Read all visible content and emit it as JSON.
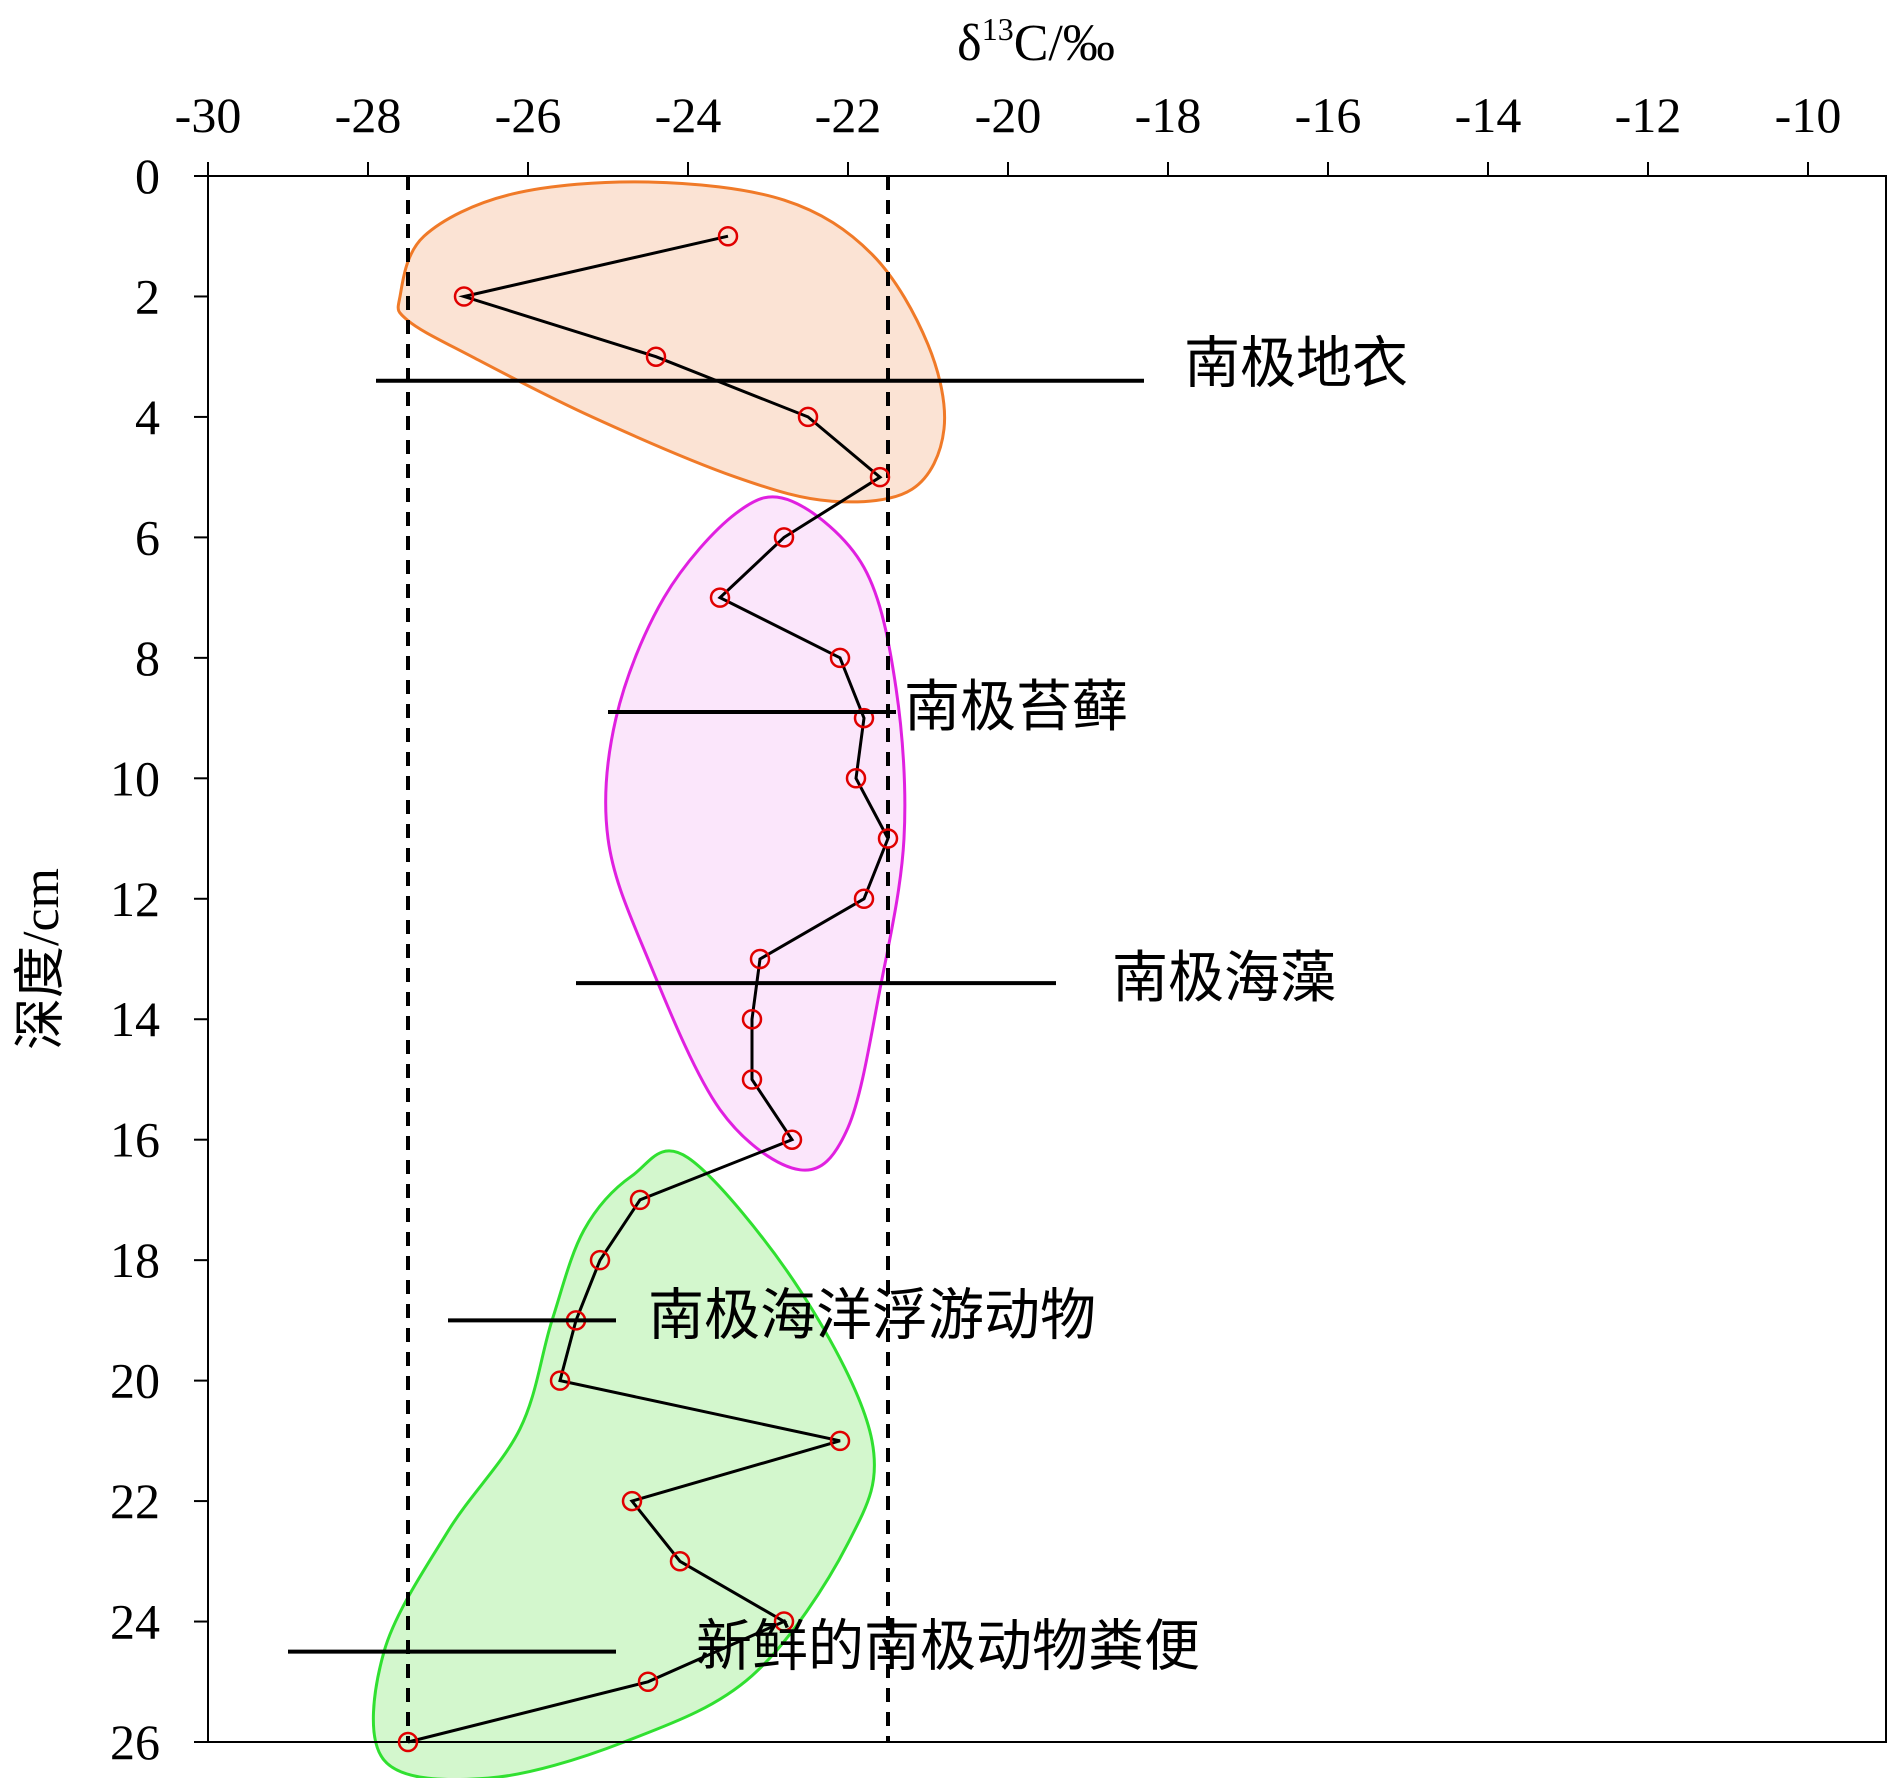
{
  "chart_data": {
    "type": "scatter",
    "title": "",
    "xlabel": "δ13C/‰",
    "xlabel_parts": {
      "base": "δ",
      "sup": "13",
      "rest": "C/‰"
    },
    "ylabel": "深度/cm",
    "x_axis_position": "top",
    "y_axis_inverted": true,
    "xlim": [
      -30,
      -9
    ],
    "ylim": [
      0,
      26
    ],
    "xticks": [
      -30,
      -28,
      -26,
      -24,
      -22,
      -20,
      -18,
      -16,
      -14,
      -12,
      -10
    ],
    "xtick_labels": [
      "-30",
      "-28",
      "-26",
      "-24",
      "-22",
      "-20",
      "-18",
      "-16",
      "-14",
      "-12",
      "-10"
    ],
    "yticks": [
      0,
      2,
      4,
      6,
      8,
      10,
      12,
      14,
      16,
      18,
      20,
      22,
      24,
      26
    ],
    "ytick_labels": [
      "0",
      "2",
      "4",
      "6",
      "8",
      "10",
      "12",
      "14",
      "16",
      "18",
      "20",
      "22",
      "24",
      "26"
    ],
    "grid": false,
    "legend": "none",
    "series": [
      {
        "marker": "open-circle",
        "marker_color": "#e00000",
        "line_color": "#000000",
        "points": [
          {
            "x": -23.5,
            "y": 1
          },
          {
            "x": -26.8,
            "y": 2
          },
          {
            "x": -24.4,
            "y": 3
          },
          {
            "x": -22.5,
            "y": 4
          },
          {
            "x": -21.6,
            "y": 5
          },
          {
            "x": -22.8,
            "y": 6
          },
          {
            "x": -23.6,
            "y": 7
          },
          {
            "x": -22.1,
            "y": 8
          },
          {
            "x": -21.8,
            "y": 9
          },
          {
            "x": -21.9,
            "y": 10
          },
          {
            "x": -21.5,
            "y": 11
          },
          {
            "x": -21.8,
            "y": 12
          },
          {
            "x": -23.1,
            "y": 13
          },
          {
            "x": -23.2,
            "y": 14
          },
          {
            "x": -23.2,
            "y": 15
          },
          {
            "x": -22.7,
            "y": 16
          },
          {
            "x": -24.6,
            "y": 17
          },
          {
            "x": -25.1,
            "y": 18
          },
          {
            "x": -25.4,
            "y": 19
          },
          {
            "x": -25.6,
            "y": 20
          },
          {
            "x": -22.1,
            "y": 21
          },
          {
            "x": -24.7,
            "y": 22
          },
          {
            "x": -24.1,
            "y": 23
          },
          {
            "x": -22.8,
            "y": 24
          },
          {
            "x": -24.5,
            "y": 25
          },
          {
            "x": -27.5,
            "y": 26
          }
        ]
      }
    ],
    "reference_lines": [
      {
        "x": -27.5,
        "style": "dashed",
        "color": "#000000"
      },
      {
        "x": -21.5,
        "style": "dashed",
        "color": "#000000"
      }
    ],
    "range_bars": [
      {
        "label": "南极地衣",
        "xmin": -27.9,
        "xmax": -18.3,
        "y": 3.4,
        "label_x": -17.8,
        "label_y": 3.1
      },
      {
        "label": "南极苔藓",
        "xmin": -25.0,
        "xmax": -21.4,
        "y": 8.9,
        "label_x": -21.3,
        "label_y": 8.8
      },
      {
        "label": "南极海藻",
        "xmin": -25.4,
        "xmax": -19.4,
        "y": 13.4,
        "label_x": -18.7,
        "label_y": 13.3
      },
      {
        "label": "南极海洋浮游动物",
        "xmin": -27.0,
        "xmax": -24.9,
        "y": 19.0,
        "label_x": -24.5,
        "label_y": 18.9
      },
      {
        "label": "新鲜的南极动物粪便",
        "xmin": -29.0,
        "xmax": -24.9,
        "y": 24.5,
        "label_x": -23.9,
        "label_y": 24.4
      }
    ],
    "groups": [
      {
        "stroke": "#f07a28",
        "fill": "#fbe3d4",
        "outline": [
          [
            -27.6,
            2.0
          ],
          [
            -27.3,
            1.0
          ],
          [
            -26.2,
            0.3
          ],
          [
            -24.5,
            0.1
          ],
          [
            -22.8,
            0.4
          ],
          [
            -21.7,
            1.3
          ],
          [
            -21.0,
            2.8
          ],
          [
            -20.8,
            4.2
          ],
          [
            -21.2,
            5.2
          ],
          [
            -22.2,
            5.4
          ],
          [
            -23.4,
            5.0
          ],
          [
            -25.2,
            4.0
          ],
          [
            -26.7,
            3.0
          ],
          [
            -27.5,
            2.4
          ]
        ]
      },
      {
        "stroke": "#e020e0",
        "fill": "#fbe6fb",
        "outline": [
          [
            -22.7,
            5.4
          ],
          [
            -23.4,
            5.6
          ],
          [
            -24.3,
            7.0
          ],
          [
            -24.9,
            9.0
          ],
          [
            -25.0,
            11.0
          ],
          [
            -24.5,
            13.0
          ],
          [
            -23.6,
            15.5
          ],
          [
            -22.6,
            16.5
          ],
          [
            -22.0,
            15.8
          ],
          [
            -21.6,
            13.5
          ],
          [
            -21.3,
            11.0
          ],
          [
            -21.4,
            8.5
          ],
          [
            -21.8,
            6.5
          ]
        ]
      },
      {
        "stroke": "#30e030",
        "fill": "#d3f7cd",
        "outline": [
          [
            -24.0,
            16.3
          ],
          [
            -24.7,
            16.6
          ],
          [
            -25.3,
            17.5
          ],
          [
            -25.7,
            19.0
          ],
          [
            -26.1,
            20.8
          ],
          [
            -27.0,
            22.5
          ],
          [
            -27.8,
            24.5
          ],
          [
            -27.8,
            26.3
          ],
          [
            -26.5,
            26.6
          ],
          [
            -24.8,
            26.0
          ],
          [
            -23.2,
            24.9
          ],
          [
            -22.0,
            22.7
          ],
          [
            -21.7,
            21.0
          ],
          [
            -22.6,
            18.5
          ]
        ]
      }
    ]
  }
}
